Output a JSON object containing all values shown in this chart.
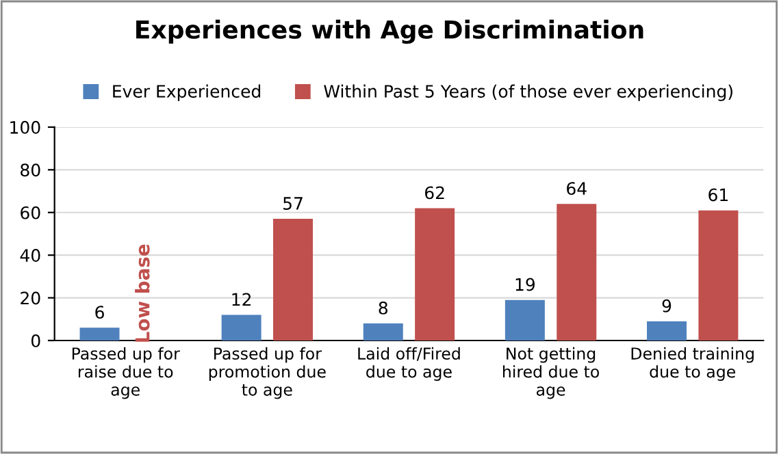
{
  "chart_data": {
    "type": "bar",
    "title": "Experiences with Age Discrimination",
    "categories": [
      "Passed up for raise due to age",
      "Passed up for promotion due to age",
      "Laid off/Fired due to age",
      "Not getting hired due to age",
      "Denied training due to age"
    ],
    "series": [
      {
        "name": "Ever Experienced",
        "color": "#4f81bd",
        "values": [
          6,
          12,
          8,
          19,
          9
        ]
      },
      {
        "name": "Within Past 5 Years (of those ever experiencing)",
        "color": "#c0504d",
        "values": [
          null,
          57,
          62,
          64,
          61
        ]
      }
    ],
    "ylim": [
      0,
      100
    ],
    "yticks": [
      0,
      20,
      40,
      60,
      80,
      100
    ],
    "grid": "y",
    "legend": "top",
    "data_labels": true,
    "annotations": [
      "Low base"
    ]
  }
}
